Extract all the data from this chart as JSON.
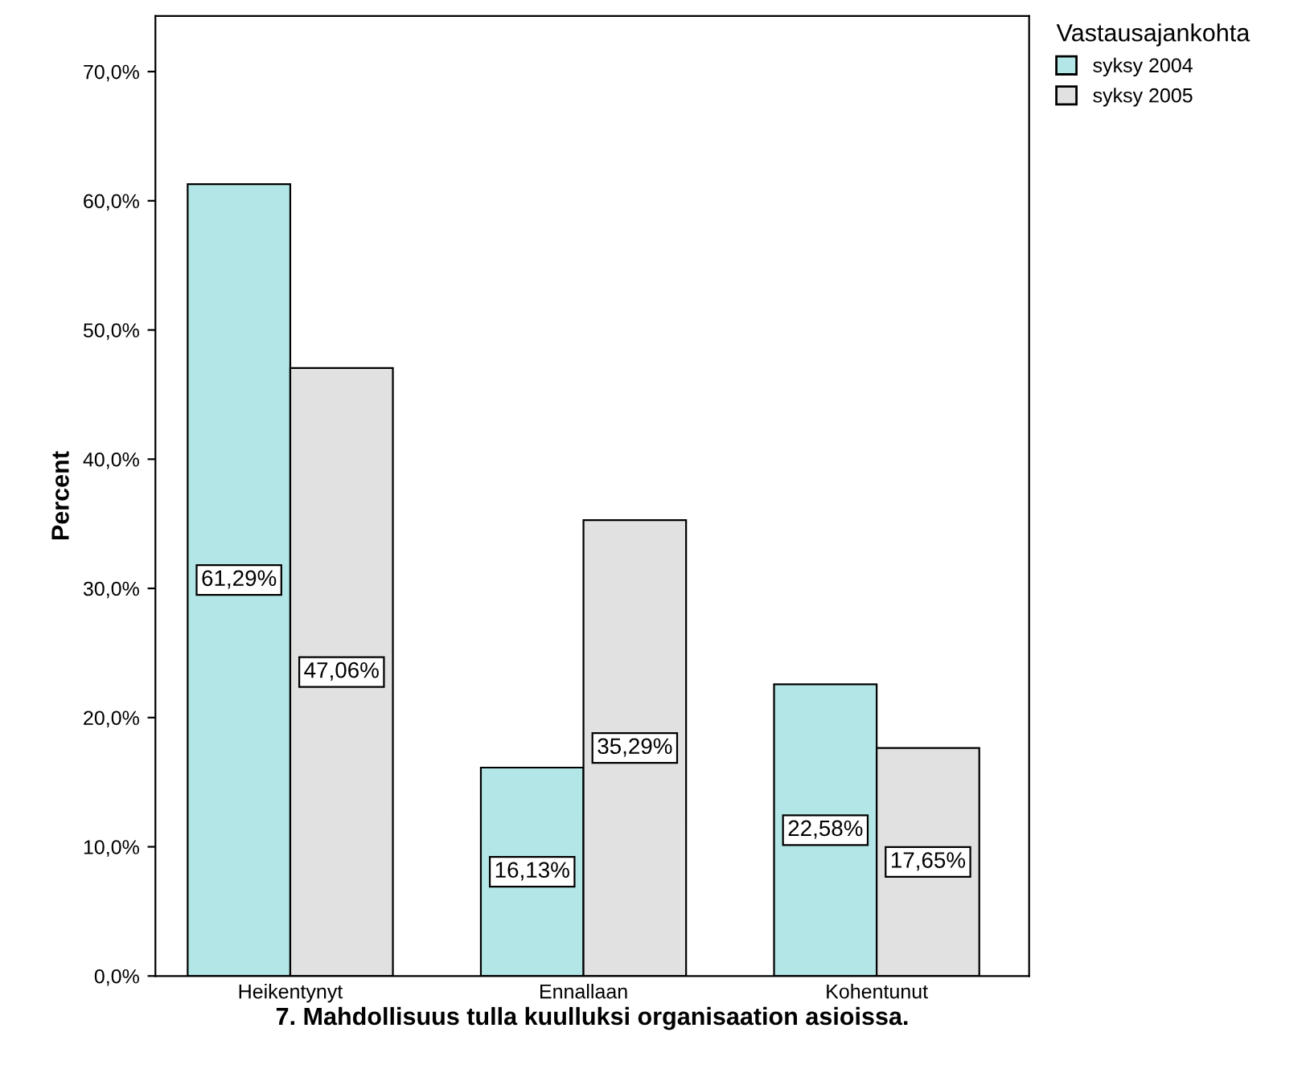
{
  "chart_data": {
    "type": "bar",
    "xlabel": "7. Mahdollisuus tulla kuulluksi organisaation asioissa.",
    "ylabel": "Percent",
    "legend_title": "Vastausajankohta",
    "legend": "top right",
    "categories": [
      "Heikentynyt",
      "Ennallaan",
      "Kohentunut"
    ],
    "series": [
      {
        "name": "syksy 2004",
        "color": "#b3e6e6",
        "values": [
          61.29,
          16.13,
          22.58
        ],
        "value_labels": [
          "61,29%",
          "16,13%",
          "22,58%"
        ]
      },
      {
        "name": "syksy 2005",
        "color": "#e1e1e1",
        "values": [
          47.06,
          35.29,
          17.65
        ],
        "value_labels": [
          "47,06%",
          "35,29%",
          "17,65%"
        ]
      }
    ],
    "ylim": [
      0,
      74.3
    ],
    "yticks": [
      {
        "value": 0,
        "label": "0,0%"
      },
      {
        "value": 10,
        "label": "10,0%"
      },
      {
        "value": 20,
        "label": "20,0%"
      },
      {
        "value": 30,
        "label": "30,0%"
      },
      {
        "value": 40,
        "label": "40,0%"
      },
      {
        "value": 50,
        "label": "50,0%"
      },
      {
        "value": 60,
        "label": "60,0%"
      },
      {
        "value": 70,
        "label": "70,0%"
      }
    ],
    "grid": false
  }
}
